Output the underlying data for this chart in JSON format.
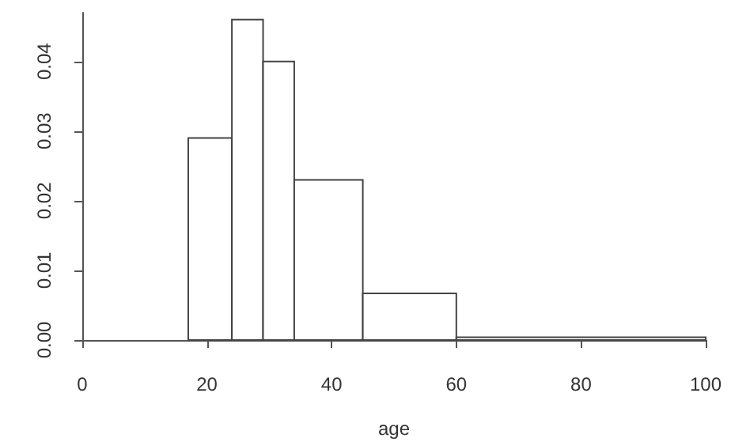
{
  "chart_data": {
    "type": "histogram",
    "xlabel": "age",
    "bins": [
      17,
      24,
      29,
      34,
      45,
      60,
      100
    ],
    "values": [
      0.029,
      0.046,
      0.04,
      0.023,
      0.0067,
      0.0004
    ],
    "color": "#ffffff",
    "xlim": [
      0,
      100
    ],
    "xticks": [
      0,
      20,
      40,
      60,
      80,
      100
    ],
    "ylim": [
      0,
      0.047
    ],
    "yticks": [
      {
        "value": 0,
        "label": "0.00"
      },
      {
        "value": 0.01,
        "label": "0.01"
      },
      {
        "value": 0.02,
        "label": "0.02"
      },
      {
        "value": 0.03,
        "label": "0.03"
      },
      {
        "value": 0.04,
        "label": "0.04"
      }
    ],
    "grid": false
  }
}
